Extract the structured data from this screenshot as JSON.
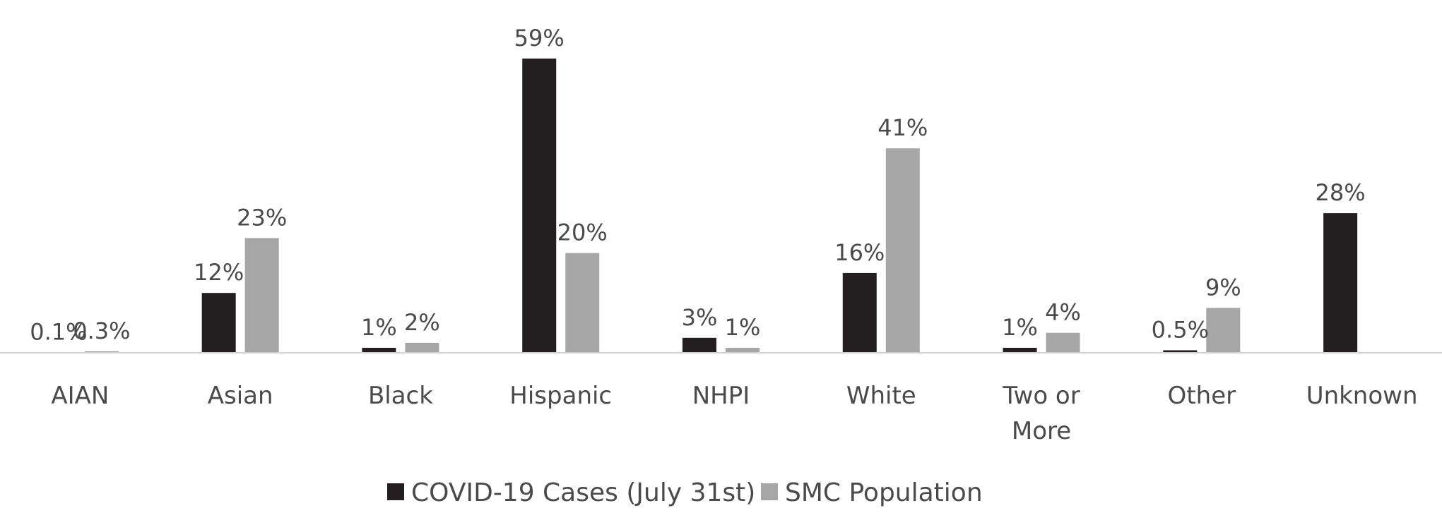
{
  "chart_data": {
    "type": "bar",
    "categories": [
      "AIAN",
      "Asian",
      "Black",
      "Hispanic",
      "NHPI",
      "White",
      "Two or More",
      "Other",
      "Unknown"
    ],
    "series": [
      {
        "name": "COVID-19 Cases (July 31st)",
        "color": "#231f20",
        "values": [
          0.1,
          12,
          1,
          59,
          3,
          16,
          1,
          0.5,
          28
        ],
        "labels": [
          "0.1%",
          "12%",
          "1%",
          "59%",
          "3%",
          "16%",
          "1%",
          "0.5%",
          "28%"
        ]
      },
      {
        "name": "SMC Population",
        "color": "#a6a6a6",
        "values": [
          0.3,
          23,
          2,
          20,
          1,
          41,
          4,
          9,
          null
        ],
        "labels": [
          "0.3%",
          "23%",
          "2%",
          "20%",
          "1%",
          "41%",
          "4%",
          "9%",
          null
        ]
      }
    ],
    "title": "",
    "xlabel": "",
    "ylabel": "",
    "ylim": [
      0,
      65
    ],
    "grid": false,
    "legend_position": "bottom"
  }
}
